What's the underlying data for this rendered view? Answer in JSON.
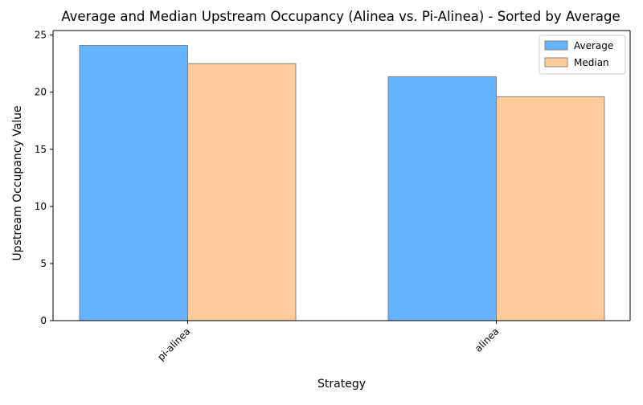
{
  "chart_data": {
    "type": "bar",
    "title": "Average and Median Upstream Occupancy (Alinea vs. Pi-Alinea) - Sorted by Average",
    "xlabel": "Strategy",
    "ylabel": "Upstream Occupancy Value",
    "categories": [
      "pi-alinea",
      "alinea"
    ],
    "series": [
      {
        "name": "Average",
        "values": [
          24.1,
          21.35
        ],
        "color": "#66b3ff"
      },
      {
        "name": "Median",
        "values": [
          22.5,
          19.6
        ],
        "color": "#ffcc99"
      }
    ],
    "ylim": [
      0,
      25.4
    ],
    "yticks": [
      0,
      5,
      10,
      15,
      20,
      25
    ],
    "grid": false,
    "legend_position": "top-right",
    "bar_edge_color": "#808080"
  }
}
